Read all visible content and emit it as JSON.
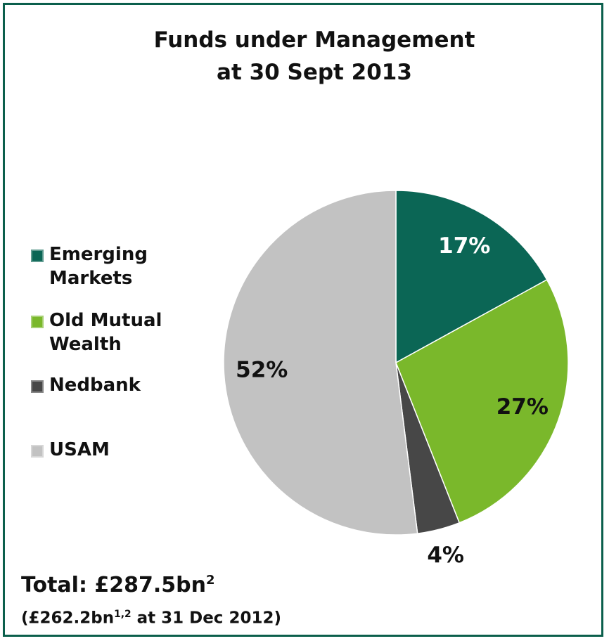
{
  "chart_data": {
    "type": "pie",
    "title_lines": [
      "Funds under Management",
      "at 30 Sept 2013"
    ],
    "categories": [
      "Emerging Markets",
      "Old Mutual Wealth",
      "Nedbank",
      "USAM"
    ],
    "values": [
      17,
      27,
      4,
      52
    ],
    "value_labels": [
      "17%",
      "27%",
      "4%",
      "52%"
    ],
    "colors": [
      "#0b6655",
      "#7ab82b",
      "#474747",
      "#c2c2c2"
    ],
    "value_label_colors": [
      "#ffffff",
      "#111111",
      "#111111",
      "#111111"
    ],
    "legend": "left",
    "total": {
      "text": "Total: £287.5bn",
      "sup": "2"
    },
    "prior": {
      "text": "(£262.2bn",
      "sup": "1,2",
      "rest": " at 31 Dec 2012)"
    }
  }
}
